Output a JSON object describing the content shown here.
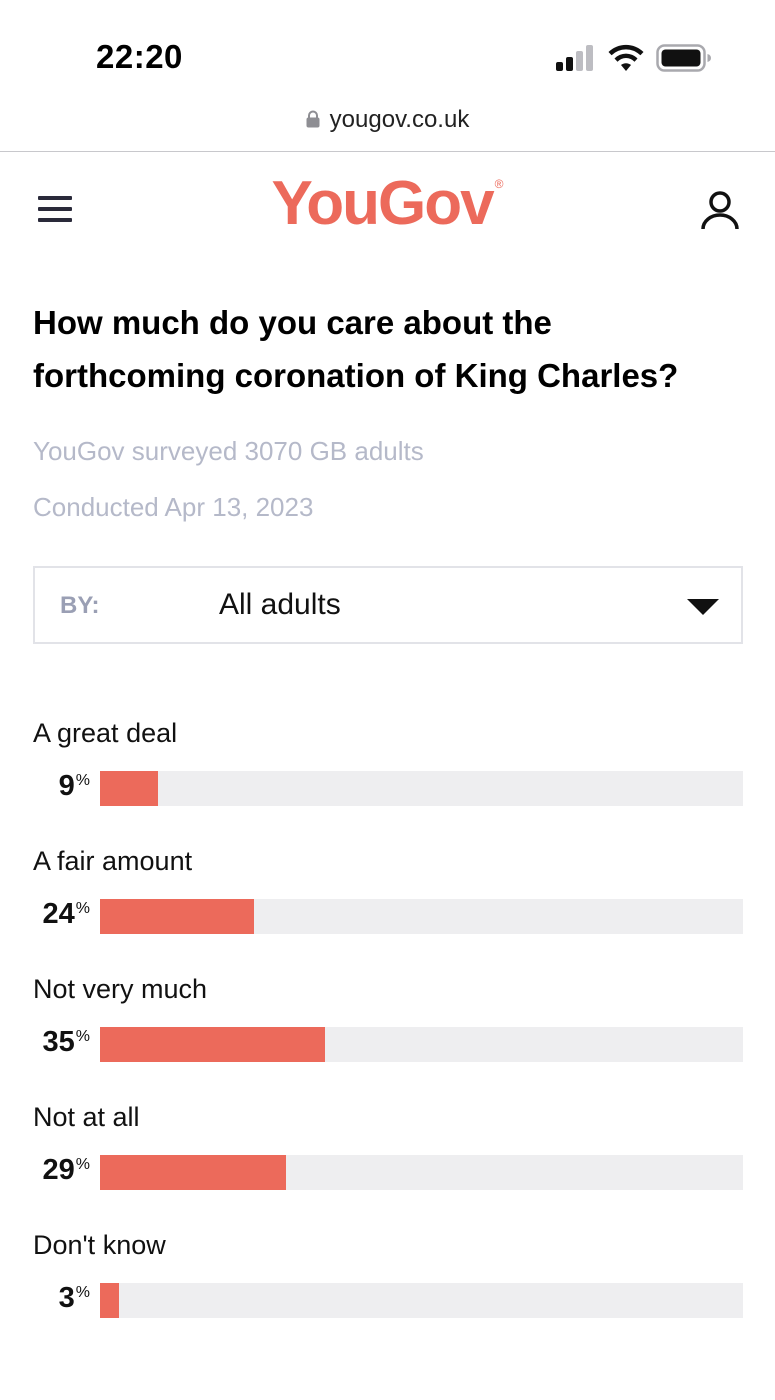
{
  "status_bar": {
    "time": "22:20",
    "icons": [
      "signal-icon",
      "wifi-icon",
      "battery-icon"
    ]
  },
  "browser": {
    "url": "yougov.co.uk",
    "icons": [
      "lock-icon"
    ]
  },
  "header": {
    "logo": "YouGov",
    "logo_mark": "®",
    "icons": [
      "menu-icon",
      "account-icon"
    ]
  },
  "survey": {
    "question": "How much do you care about the forthcoming coronation of King Charles?",
    "respondents": "YouGov surveyed 3070 GB adults",
    "conducted": "Conducted Apr 13, 2023",
    "filter": {
      "label": "BY:",
      "value": "All adults"
    }
  },
  "colors": {
    "accent": "#ec6a5b",
    "track": "#eeeef0",
    "muted_text": "#b5b9c9"
  },
  "chart_data": {
    "type": "bar",
    "title": "How much do you care about the forthcoming coronation of King Charles?",
    "unit": "%",
    "categories": [
      "A great deal",
      "A fair amount",
      "Not very much",
      "Not at all",
      "Don't know"
    ],
    "values": [
      9,
      24,
      35,
      29,
      3
    ],
    "xlim": [
      0,
      100
    ]
  }
}
